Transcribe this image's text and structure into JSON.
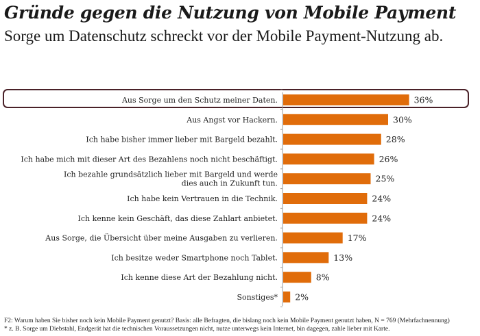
{
  "header": {
    "title": "Gründe gegen die Nutzung von Mobile Payment",
    "subtitle": "Sorge um Datenschutz schreckt vor der Mobile Payment-Nutzung ab."
  },
  "chart_data": {
    "type": "bar",
    "orientation": "horizontal",
    "title": "Gründe gegen die Nutzung von Mobile Payment",
    "subtitle": "Sorge um Datenschutz schreckt vor der Mobile Payment-Nutzung ab.",
    "xlabel": "",
    "ylabel": "",
    "unit": "%",
    "bar_color": "#e06c0a",
    "highlight_color": "#4a2128",
    "highlighted_index": 0,
    "categories": [
      [
        "Aus Sorge um den Schutz meiner Daten."
      ],
      [
        "Aus Angst vor Hackern."
      ],
      [
        "Ich habe bisher immer lieber mit Bargeld bezahlt."
      ],
      [
        "Ich habe mich mit dieser Art des Bezahlens noch nicht beschäftigt."
      ],
      [
        "Ich bezahle grundsätzlich lieber mit Bargeld und werde",
        "dies auch in Zukunft tun."
      ],
      [
        "Ich habe kein Vertrauen in die Technik."
      ],
      [
        "Ich kenne kein Geschäft, das diese Zahlart anbietet."
      ],
      [
        "Aus Sorge, die Übersicht über meine Ausgaben zu verlieren."
      ],
      [
        "Ich besitze weder Smartphone noch Tablet."
      ],
      [
        "Ich kenne diese Art der Bezahlung nicht."
      ],
      [
        "Sonstiges*"
      ]
    ],
    "values": [
      36,
      30,
      28,
      26,
      25,
      24,
      24,
      17,
      13,
      8,
      2
    ],
    "value_labels": [
      "36%",
      "30%",
      "28%",
      "26%",
      "25%",
      "24%",
      "24%",
      "17%",
      "13%",
      "8%",
      "2%"
    ],
    "xlim": [
      0,
      40
    ],
    "grid": false,
    "legend": "none"
  },
  "footnotes": {
    "line1": "F2: Warum haben Sie bisher noch kein Mobile Payment genutzt?  Basis: alle Befragten,  die bislang  noch kein Mobile Payment genutzt haben, N =  769 (Mehrfachnennung)",
    "line2": "* z. B. Sorge um Diebstahl, Endgerät hat die technischen Voraussetzungen nicht, nutze unterwegs kein Internet, bin dagegen, zahle lieber mit Karte."
  }
}
